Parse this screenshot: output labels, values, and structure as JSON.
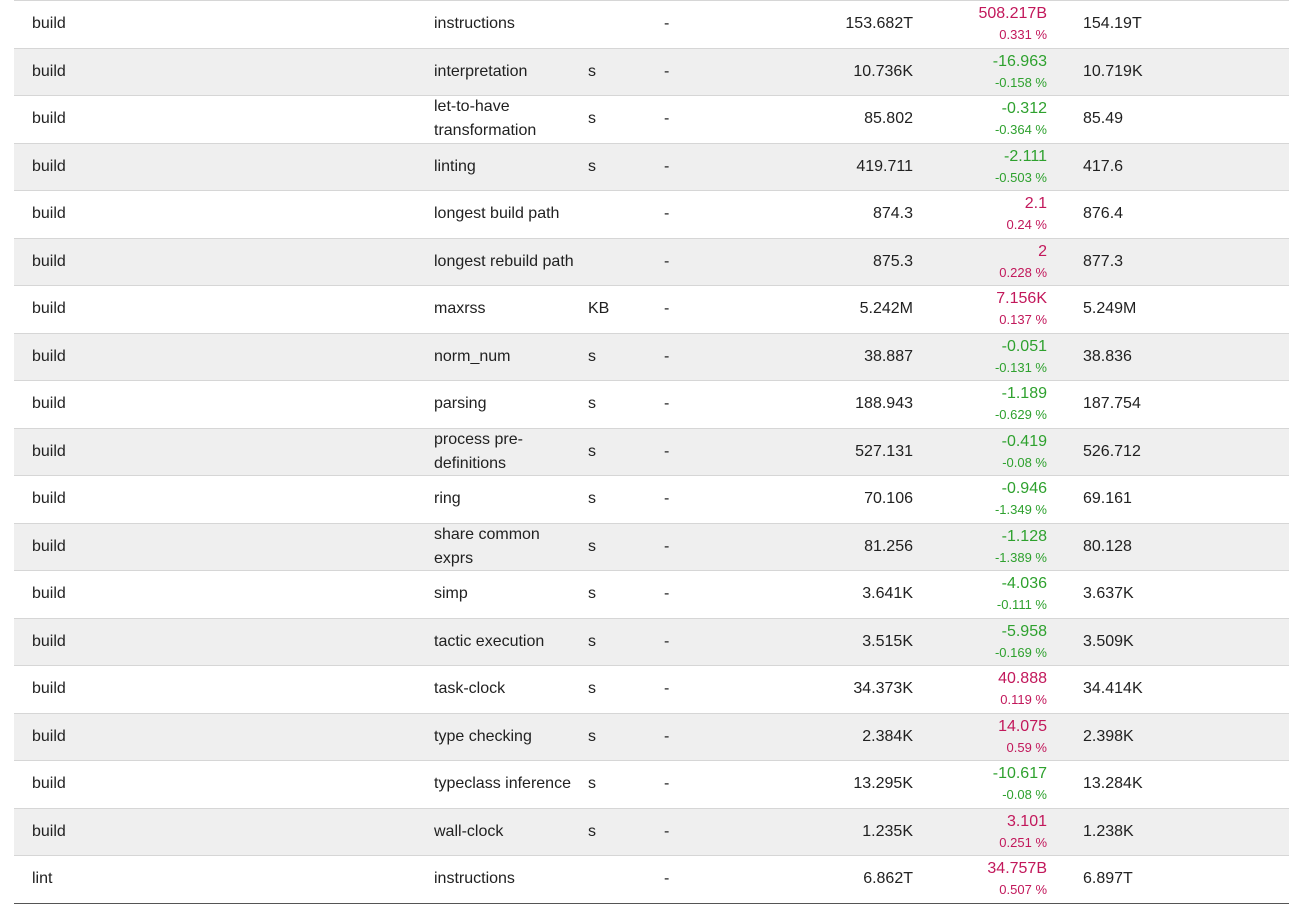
{
  "colors": {
    "worse": "#c2185b",
    "better": "#2ea12e"
  },
  "rows": [
    {
      "bench": "build",
      "metric": "instructions",
      "unit": "",
      "sig": "-",
      "old": "153.682T",
      "diff": "508.217B",
      "pct": "0.331 %",
      "dir": "worse",
      "new": "154.19T"
    },
    {
      "bench": "build",
      "metric": "interpretation",
      "unit": "s",
      "sig": "-",
      "old": "10.736K",
      "diff": "-16.963",
      "pct": "-0.158 %",
      "dir": "better",
      "new": "10.719K"
    },
    {
      "bench": "build",
      "metric": "let-to-have transformation",
      "unit": "s",
      "sig": "-",
      "old": "85.802",
      "diff": "-0.312",
      "pct": "-0.364 %",
      "dir": "better",
      "new": "85.49"
    },
    {
      "bench": "build",
      "metric": "linting",
      "unit": "s",
      "sig": "-",
      "old": "419.711",
      "diff": "-2.111",
      "pct": "-0.503 %",
      "dir": "better",
      "new": "417.6"
    },
    {
      "bench": "build",
      "metric": "longest build path",
      "unit": "",
      "sig": "-",
      "old": "874.3",
      "diff": "2.1",
      "pct": "0.24 %",
      "dir": "worse",
      "new": "876.4"
    },
    {
      "bench": "build",
      "metric": "longest rebuild path",
      "unit": "",
      "sig": "-",
      "old": "875.3",
      "diff": "2",
      "pct": "0.228 %",
      "dir": "worse",
      "new": "877.3"
    },
    {
      "bench": "build",
      "metric": "maxrss",
      "unit": "KB",
      "sig": "-",
      "old": "5.242M",
      "diff": "7.156K",
      "pct": "0.137 %",
      "dir": "worse",
      "new": "5.249M"
    },
    {
      "bench": "build",
      "metric": "norm_num",
      "unit": "s",
      "sig": "-",
      "old": "38.887",
      "diff": "-0.051",
      "pct": "-0.131 %",
      "dir": "better",
      "new": "38.836"
    },
    {
      "bench": "build",
      "metric": "parsing",
      "unit": "s",
      "sig": "-",
      "old": "188.943",
      "diff": "-1.189",
      "pct": "-0.629 %",
      "dir": "better",
      "new": "187.754"
    },
    {
      "bench": "build",
      "metric": "process pre-definitions",
      "unit": "s",
      "sig": "-",
      "old": "527.131",
      "diff": "-0.419",
      "pct": "-0.08 %",
      "dir": "better",
      "new": "526.712"
    },
    {
      "bench": "build",
      "metric": "ring",
      "unit": "s",
      "sig": "-",
      "old": "70.106",
      "diff": "-0.946",
      "pct": "-1.349 %",
      "dir": "better",
      "new": "69.161"
    },
    {
      "bench": "build",
      "metric": "share common exprs",
      "unit": "s",
      "sig": "-",
      "old": "81.256",
      "diff": "-1.128",
      "pct": "-1.389 %",
      "dir": "better",
      "new": "80.128"
    },
    {
      "bench": "build",
      "metric": "simp",
      "unit": "s",
      "sig": "-",
      "old": "3.641K",
      "diff": "-4.036",
      "pct": "-0.111 %",
      "dir": "better",
      "new": "3.637K"
    },
    {
      "bench": "build",
      "metric": "tactic execution",
      "unit": "s",
      "sig": "-",
      "old": "3.515K",
      "diff": "-5.958",
      "pct": "-0.169 %",
      "dir": "better",
      "new": "3.509K"
    },
    {
      "bench": "build",
      "metric": "task-clock",
      "unit": "s",
      "sig": "-",
      "old": "34.373K",
      "diff": "40.888",
      "pct": "0.119 %",
      "dir": "worse",
      "new": "34.414K"
    },
    {
      "bench": "build",
      "metric": "type checking",
      "unit": "s",
      "sig": "-",
      "old": "2.384K",
      "diff": "14.075",
      "pct": "0.59 %",
      "dir": "worse",
      "new": "2.398K"
    },
    {
      "bench": "build",
      "metric": "typeclass inference",
      "unit": "s",
      "sig": "-",
      "old": "13.295K",
      "diff": "-10.617",
      "pct": "-0.08 %",
      "dir": "better",
      "new": "13.284K"
    },
    {
      "bench": "build",
      "metric": "wall-clock",
      "unit": "s",
      "sig": "-",
      "old": "1.235K",
      "diff": "3.101",
      "pct": "0.251 %",
      "dir": "worse",
      "new": "1.238K"
    },
    {
      "bench": "lint",
      "metric": "instructions",
      "unit": "",
      "sig": "-",
      "old": "6.862T",
      "diff": "34.757B",
      "pct": "0.507 %",
      "dir": "worse",
      "new": "6.897T"
    }
  ]
}
